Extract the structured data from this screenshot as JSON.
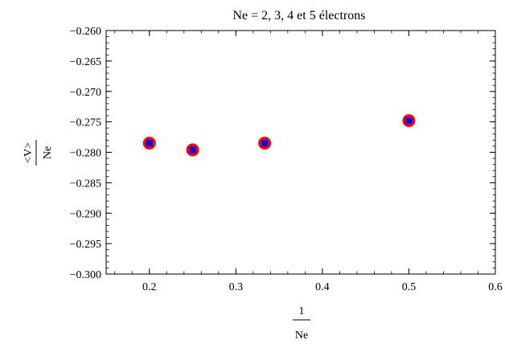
{
  "chart_data": {
    "type": "scatter",
    "title": "Ne = 2, 3, 4 et 5 électrons",
    "xlabel": {
      "numerator": "1",
      "denominator": "Ne"
    },
    "ylabel": {
      "numerator": "<V>",
      "denominator": "Ne"
    },
    "xlim": [
      0.15,
      0.6
    ],
    "ylim": [
      -0.3,
      -0.26
    ],
    "x_ticks": [
      0.2,
      0.3,
      0.4,
      0.5,
      0.6
    ],
    "x_tick_labels": [
      "0.2",
      "0.3",
      "0.4",
      "0.5",
      "0.6"
    ],
    "y_ticks": [
      -0.26,
      -0.265,
      -0.27,
      -0.275,
      -0.28,
      -0.285,
      -0.29,
      -0.295,
      -0.3
    ],
    "y_tick_labels": [
      "−0.260",
      "−0.265",
      "−0.270",
      "−0.275",
      "−0.280",
      "−0.285",
      "−0.290",
      "−0.295",
      "−0.300"
    ],
    "grid": false,
    "series": [
      {
        "marker_outer_color": "#ff0000",
        "marker_inner_color": "#0000ff",
        "points": [
          {
            "x": 0.2,
            "y": -0.2785
          },
          {
            "x": 0.25,
            "y": -0.2796
          },
          {
            "x": 0.3333,
            "y": -0.2785
          },
          {
            "x": 0.5,
            "y": -0.2748
          }
        ]
      }
    ]
  }
}
